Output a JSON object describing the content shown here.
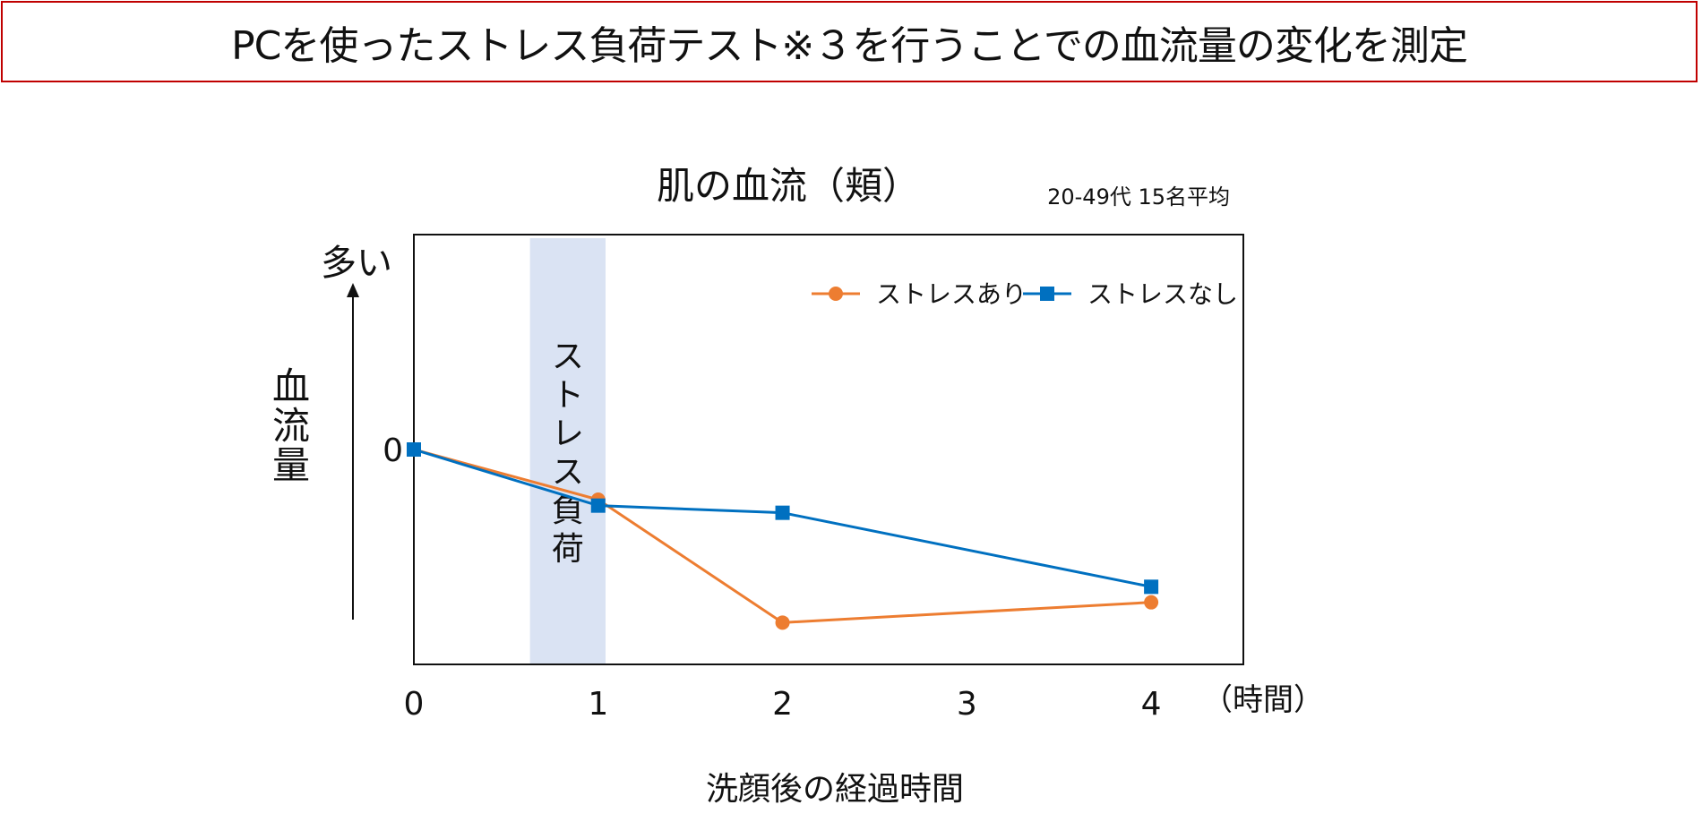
{
  "banner": {
    "title": "PCを使ったストレス負荷テスト※３を行うことでの血流量の変化を測定"
  },
  "chart_data": {
    "type": "line",
    "title": "肌の血流（頬）",
    "subtitle": "20-49代 15名平均",
    "xlabel": "洗顔後の経過時間",
    "x_unit_label": "（時間）",
    "ylabel": "血流量",
    "y_top_label": "多い",
    "x_ticks": [
      "0",
      "1",
      "2",
      "3",
      "4"
    ],
    "y_ticks": [
      "0"
    ],
    "xlim": [
      0,
      4.5
    ],
    "ylim": [
      -1.8,
      1.8
    ],
    "grid": false,
    "legend_position": "top-right",
    "shaded_region": {
      "x_start": 0.63,
      "x_end": 1.04,
      "label": "ストレス負荷",
      "color": "#dae3f3"
    },
    "series": [
      {
        "name": "ストレスあり",
        "color": "#ed7d31",
        "marker": "circle",
        "x": [
          0,
          1,
          2,
          4
        ],
        "y": [
          0,
          -0.42,
          -1.45,
          -1.28
        ]
      },
      {
        "name": "ストレスなし",
        "color": "#0070c0",
        "marker": "square",
        "x": [
          0,
          1,
          2,
          4
        ],
        "y": [
          0,
          -0.47,
          -0.53,
          -1.15
        ]
      }
    ]
  }
}
